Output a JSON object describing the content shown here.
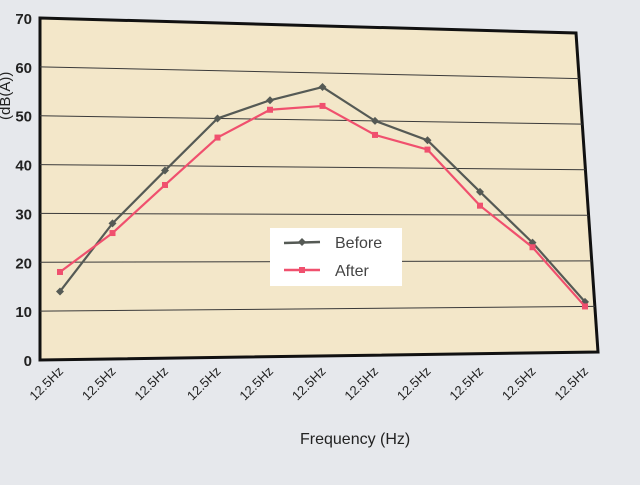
{
  "chart_data": {
    "type": "line",
    "title": "",
    "xlabel": "Frequency (Hz)",
    "ylabel": "(dB(A))",
    "ylim": [
      0,
      70
    ],
    "yticks": [
      0,
      10,
      20,
      30,
      40,
      50,
      60,
      70
    ],
    "categories": [
      "12.5Hz",
      "12.5Hz",
      "12.5Hz",
      "12.5Hz",
      "12.5Hz",
      "12.5Hz",
      "12.5Hz",
      "12.5Hz",
      "12.5Hz",
      "12.5Hz",
      "12.5Hz"
    ],
    "grid": true,
    "legend_position": "center",
    "series": [
      {
        "name": "Before",
        "color": "#555a55",
        "marker": "diamond",
        "values": [
          14,
          28,
          39,
          50,
          54,
          57,
          50,
          46,
          35,
          24,
          11
        ]
      },
      {
        "name": "After",
        "color": "#f0506e",
        "marker": "square",
        "values": [
          18,
          26,
          36,
          46,
          52,
          53,
          47,
          44,
          32,
          23,
          10
        ]
      }
    ],
    "colors": {
      "plot_background": "#f3e7c9",
      "grid": "#3a3a3a",
      "axis": "#111111"
    }
  }
}
